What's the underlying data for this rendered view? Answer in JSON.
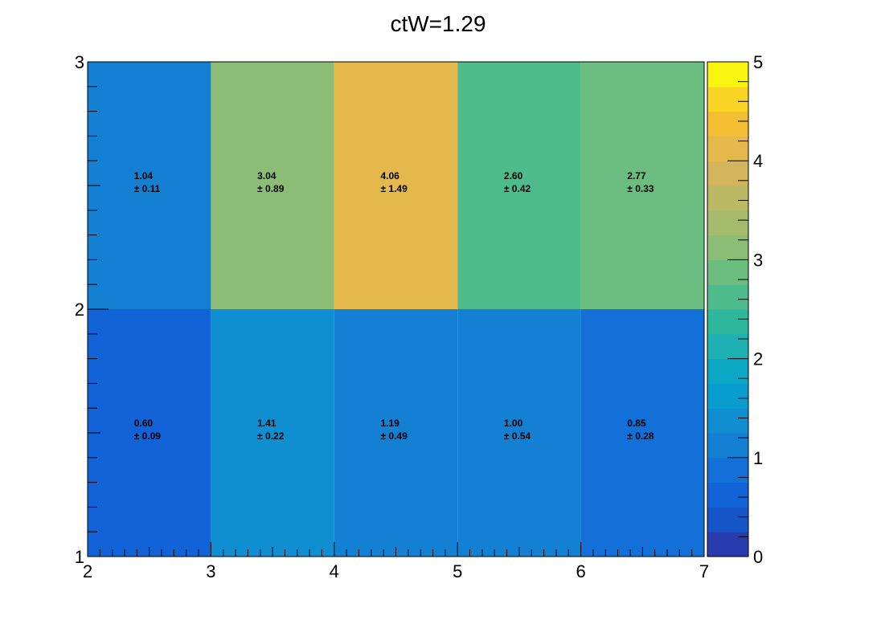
{
  "chart_data": {
    "type": "heatmap",
    "title": "ctW=1.29",
    "x_edges": [
      2,
      3,
      4,
      5,
      6,
      7
    ],
    "y_edges": [
      1,
      2,
      3
    ],
    "x_tick_labels": [
      "2",
      "3",
      "4",
      "5",
      "6",
      "7"
    ],
    "y_tick_labels": [
      "1",
      "2",
      "3"
    ],
    "values": [
      [
        0.6,
        1.41,
        1.19,
        1.0,
        0.85
      ],
      [
        1.04,
        3.04,
        4.06,
        2.6,
        2.77
      ]
    ],
    "errors": [
      [
        0.09,
        0.22,
        0.49,
        0.54,
        0.28
      ],
      [
        0.11,
        0.89,
        1.49,
        0.42,
        0.33
      ]
    ],
    "cell_labels": [
      [
        "0.60",
        "1.41",
        "1.19",
        "1.00",
        "0.85"
      ],
      [
        "1.04",
        "3.04",
        "4.06",
        "2.60",
        "2.77"
      ]
    ],
    "cell_error_labels": [
      [
        "± 0.09",
        "± 0.22",
        "± 0.49",
        "± 0.54",
        "± 0.28"
      ],
      [
        "± 0.11",
        "± 0.89",
        "± 1.49",
        "± 0.42",
        "± 0.33"
      ]
    ],
    "xlim": [
      2,
      7
    ],
    "ylim": [
      1,
      3
    ],
    "z_range": [
      0,
      5
    ],
    "colorbar_tick_labels": [
      "0",
      "1",
      "2",
      "3",
      "4",
      "5"
    ],
    "colorbar_levels": 20,
    "palette": "kBird",
    "colorbar_colors": [
      "#2a3baf",
      "#1655c8",
      "#1263d8",
      "#1470d9",
      "#1480d4",
      "#0f8fd2",
      "#079dcf",
      "#0aa8c5",
      "#1eb0b2",
      "#2fb79c",
      "#4ebb8c",
      "#6bbd80",
      "#8bbd76",
      "#a5bb6c",
      "#bbb963",
      "#d3b65c",
      "#e5b84b",
      "#f5bf33",
      "#f8d525",
      "#f8f60e"
    ],
    "grid": false
  }
}
